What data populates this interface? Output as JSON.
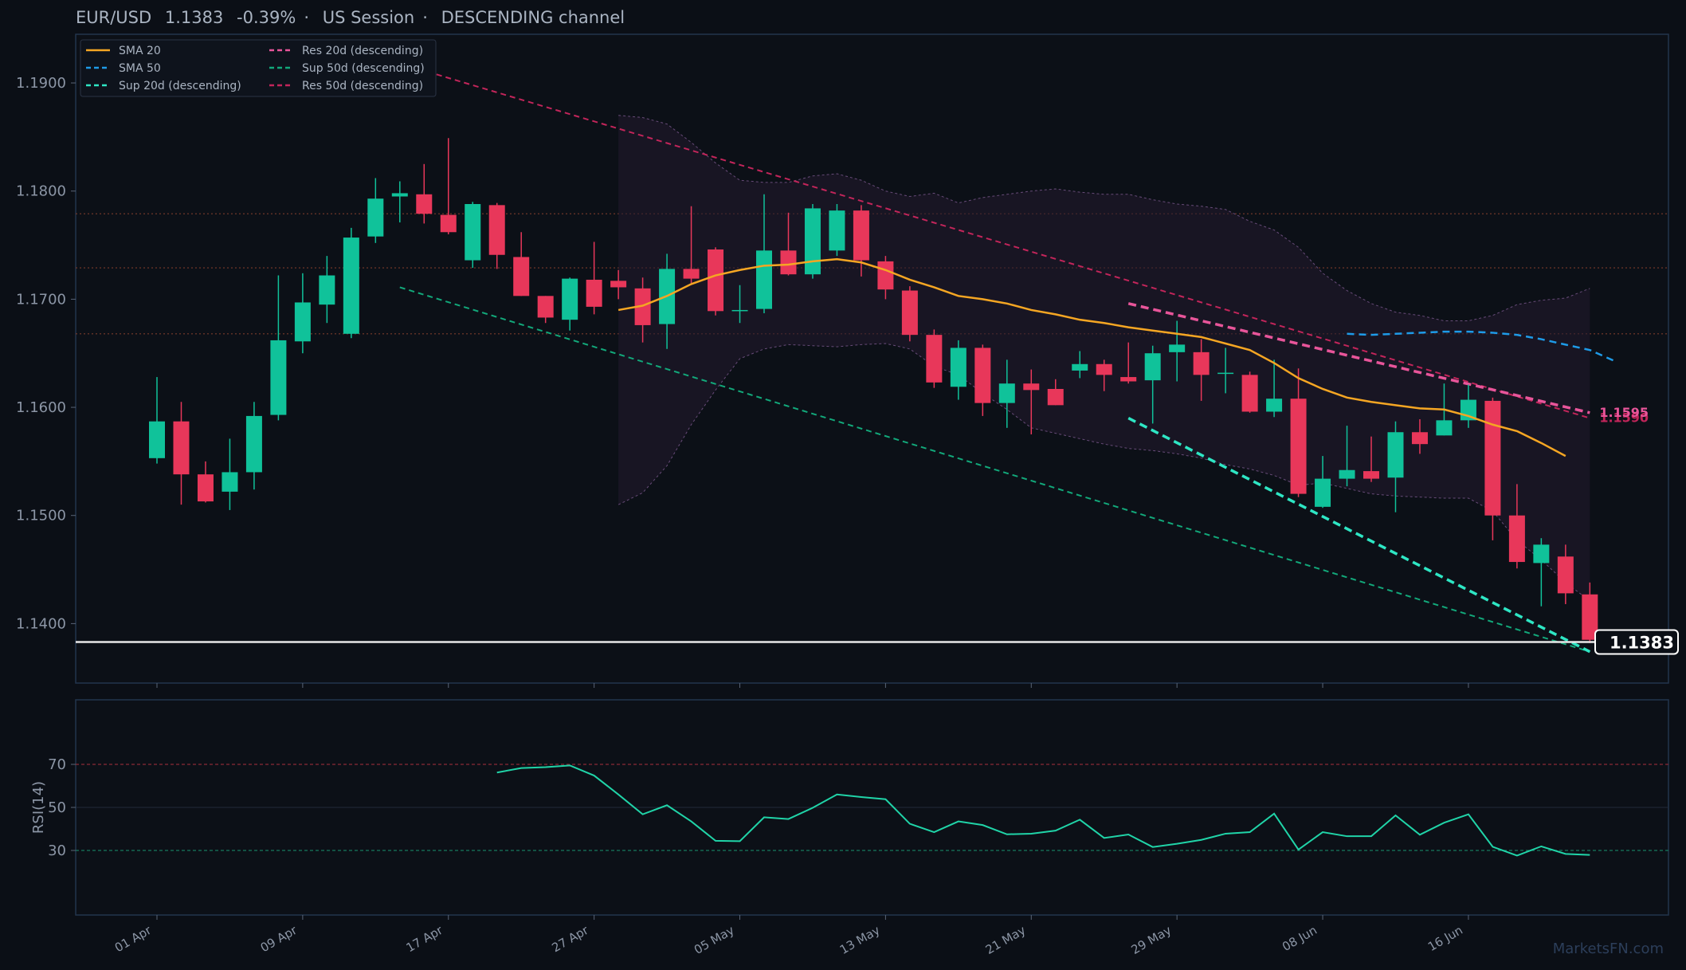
{
  "header": {
    "pair": "EUR/USD",
    "price": "1.1383",
    "change": "-0.39%",
    "session": "US Session",
    "channel": "DESCENDING channel",
    "sep": "·"
  },
  "watermark": "MarketsFN.com",
  "colors": {
    "background": "#0b0f16",
    "panel_border": "#23354d",
    "bull": "#10c29a",
    "bear": "#e8375a",
    "sma20": "#f5a623",
    "sma50": "#1e9be8",
    "sup20": "#2ee6c4",
    "sup50": "#12a87a",
    "res20": "#e8559a",
    "res50": "#c2255a",
    "rsi": "#20d4a8",
    "price_line": "#e8e8e8",
    "band": "#7d5a90"
  },
  "chart_data": [
    {
      "type": "candlestick",
      "title": "",
      "ylim": [
        1.1345,
        1.1945
      ],
      "y_ticks": [
        "1.1900",
        "1.1800",
        "1.1700",
        "1.1600",
        "1.1500",
        "1.1400"
      ],
      "x_ticks": [
        "01 Apr",
        "09 Apr",
        "17 Apr",
        "27 Apr",
        "05 May",
        "13 May",
        "21 May",
        "29 May",
        "08 Jun",
        "16 Jun"
      ],
      "x_tick_index": [
        0,
        6,
        12,
        18,
        24,
        30,
        36,
        42,
        48,
        54
      ],
      "last_price_label": "1.1383",
      "legend_placement": "top-left",
      "legend": [
        {
          "name": "SMA 20",
          "style": "solid",
          "color": "#f5a623"
        },
        {
          "name": "SMA 50",
          "style": "dashed",
          "color": "#1e9be8"
        },
        {
          "name": "Sup 20d (descending)",
          "style": "dashed",
          "color": "#2ee6c4"
        },
        {
          "name": "Res 20d (descending)",
          "style": "dashed",
          "color": "#e8559a"
        },
        {
          "name": "Sup 50d (descending)",
          "style": "dashed",
          "color": "#12a87a"
        },
        {
          "name": "Res 50d (descending)",
          "style": "dashed",
          "color": "#c2255a"
        }
      ],
      "candles": [
        {
          "o": 1.1553,
          "h": 1.1628,
          "l": 1.1548,
          "c": 1.1587
        },
        {
          "o": 1.1587,
          "h": 1.1605,
          "l": 1.151,
          "c": 1.1538
        },
        {
          "o": 1.1538,
          "h": 1.155,
          "l": 1.1512,
          "c": 1.1513
        },
        {
          "o": 1.1522,
          "h": 1.1571,
          "l": 1.1505,
          "c": 1.154
        },
        {
          "o": 1.154,
          "h": 1.1605,
          "l": 1.1524,
          "c": 1.1592
        },
        {
          "o": 1.1593,
          "h": 1.1722,
          "l": 1.1588,
          "c": 1.1662
        },
        {
          "o": 1.1661,
          "h": 1.1724,
          "l": 1.165,
          "c": 1.1697
        },
        {
          "o": 1.1695,
          "h": 1.174,
          "l": 1.1678,
          "c": 1.1722
        },
        {
          "o": 1.1668,
          "h": 1.1766,
          "l": 1.1664,
          "c": 1.1757
        },
        {
          "o": 1.1758,
          "h": 1.1812,
          "l": 1.1752,
          "c": 1.1793
        },
        {
          "o": 1.1795,
          "h": 1.1809,
          "l": 1.1771,
          "c": 1.1798
        },
        {
          "o": 1.1797,
          "h": 1.1825,
          "l": 1.177,
          "c": 1.1779
        },
        {
          "o": 1.1778,
          "h": 1.1849,
          "l": 1.176,
          "c": 1.1762
        },
        {
          "o": 1.1736,
          "h": 1.179,
          "l": 1.1729,
          "c": 1.1788
        },
        {
          "o": 1.1787,
          "h": 1.1789,
          "l": 1.1728,
          "c": 1.1741
        },
        {
          "o": 1.1739,
          "h": 1.1762,
          "l": 1.1703,
          "c": 1.1703
        },
        {
          "o": 1.1703,
          "h": 1.1703,
          "l": 1.1678,
          "c": 1.1683
        },
        {
          "o": 1.1681,
          "h": 1.172,
          "l": 1.1671,
          "c": 1.1719
        },
        {
          "o": 1.1718,
          "h": 1.1753,
          "l": 1.1686,
          "c": 1.1693
        },
        {
          "o": 1.1717,
          "h": 1.1727,
          "l": 1.17,
          "c": 1.1711
        },
        {
          "o": 1.171,
          "h": 1.172,
          "l": 1.166,
          "c": 1.1676
        },
        {
          "o": 1.1677,
          "h": 1.1742,
          "l": 1.1654,
          "c": 1.1728
        },
        {
          "o": 1.1728,
          "h": 1.1786,
          "l": 1.1715,
          "c": 1.1719
        },
        {
          "o": 1.1746,
          "h": 1.1748,
          "l": 1.1685,
          "c": 1.1689
        },
        {
          "o": 1.1689,
          "h": 1.1713,
          "l": 1.1678,
          "c": 1.169
        },
        {
          "o": 1.1691,
          "h": 1.1797,
          "l": 1.1687,
          "c": 1.1745
        },
        {
          "o": 1.1745,
          "h": 1.178,
          "l": 1.1722,
          "c": 1.1723
        },
        {
          "o": 1.1723,
          "h": 1.1788,
          "l": 1.1719,
          "c": 1.1784
        },
        {
          "o": 1.1745,
          "h": 1.1788,
          "l": 1.174,
          "c": 1.1782
        },
        {
          "o": 1.1782,
          "h": 1.1787,
          "l": 1.1721,
          "c": 1.1736
        },
        {
          "o": 1.1735,
          "h": 1.174,
          "l": 1.17,
          "c": 1.1709
        },
        {
          "o": 1.1708,
          "h": 1.1712,
          "l": 1.1661,
          "c": 1.1667
        },
        {
          "o": 1.1667,
          "h": 1.1672,
          "l": 1.1618,
          "c": 1.1623
        },
        {
          "o": 1.1619,
          "h": 1.1662,
          "l": 1.1607,
          "c": 1.1655
        },
        {
          "o": 1.1655,
          "h": 1.1658,
          "l": 1.1592,
          "c": 1.1604
        },
        {
          "o": 1.1604,
          "h": 1.1644,
          "l": 1.1581,
          "c": 1.1622
        },
        {
          "o": 1.1622,
          "h": 1.1635,
          "l": 1.1575,
          "c": 1.1616
        },
        {
          "o": 1.1617,
          "h": 1.1626,
          "l": 1.1602,
          "c": 1.1602
        },
        {
          "o": 1.1634,
          "h": 1.1652,
          "l": 1.1627,
          "c": 1.164
        },
        {
          "o": 1.164,
          "h": 1.1644,
          "l": 1.1615,
          "c": 1.163
        },
        {
          "o": 1.1628,
          "h": 1.166,
          "l": 1.1622,
          "c": 1.1624
        },
        {
          "o": 1.1625,
          "h": 1.1657,
          "l": 1.1585,
          "c": 1.165
        },
        {
          "o": 1.1651,
          "h": 1.168,
          "l": 1.1624,
          "c": 1.1658
        },
        {
          "o": 1.1651,
          "h": 1.1663,
          "l": 1.1606,
          "c": 1.163
        },
        {
          "o": 1.1631,
          "h": 1.1655,
          "l": 1.1613,
          "c": 1.1632
        },
        {
          "o": 1.163,
          "h": 1.1633,
          "l": 1.1595,
          "c": 1.1596
        },
        {
          "o": 1.1596,
          "h": 1.1644,
          "l": 1.1591,
          "c": 1.1608
        },
        {
          "o": 1.1608,
          "h": 1.1636,
          "l": 1.1517,
          "c": 1.152
        },
        {
          "o": 1.1508,
          "h": 1.1555,
          "l": 1.1507,
          "c": 1.1534
        },
        {
          "o": 1.1534,
          "h": 1.1583,
          "l": 1.1527,
          "c": 1.1542
        },
        {
          "o": 1.1541,
          "h": 1.1573,
          "l": 1.1531,
          "c": 1.1534
        },
        {
          "o": 1.1535,
          "h": 1.1587,
          "l": 1.1503,
          "c": 1.1577
        },
        {
          "o": 1.1577,
          "h": 1.1589,
          "l": 1.1557,
          "c": 1.1566
        },
        {
          "o": 1.1574,
          "h": 1.1622,
          "l": 1.1574,
          "c": 1.1588
        },
        {
          "o": 1.1588,
          "h": 1.1621,
          "l": 1.1581,
          "c": 1.1607
        },
        {
          "o": 1.1606,
          "h": 1.1609,
          "l": 1.1477,
          "c": 1.15
        },
        {
          "o": 1.15,
          "h": 1.1529,
          "l": 1.1451,
          "c": 1.1457
        },
        {
          "o": 1.1456,
          "h": 1.1479,
          "l": 1.1416,
          "c": 1.1473
        },
        {
          "o": 1.1462,
          "h": 1.1473,
          "l": 1.1418,
          "c": 1.1428
        },
        {
          "o": 1.1427,
          "h": 1.1438,
          "l": 1.1382,
          "c": 1.1385
        }
      ],
      "sma20": {
        "start_index": 19,
        "values": [
          1.169,
          1.1694,
          1.1703,
          1.1714,
          1.1722,
          1.1727,
          1.1731,
          1.1732,
          1.1735,
          1.1737,
          1.1734,
          1.1727,
          1.1718,
          1.1711,
          1.1703,
          1.17,
          1.1696,
          1.169,
          1.1686,
          1.1681,
          1.1678,
          1.1674,
          1.1671,
          1.1668,
          1.1665,
          1.1659,
          1.1653,
          1.1641,
          1.1627,
          1.1617,
          1.1609,
          1.1605,
          1.1602,
          1.1599,
          1.1598,
          1.1592,
          1.1584,
          1.1578,
          1.1567,
          1.1555
        ]
      },
      "sma50": {
        "start_index": 49,
        "values": [
          1.1668,
          1.1667,
          1.1668,
          1.1669,
          1.167,
          1.167,
          1.1669,
          1.1667,
          1.1663,
          1.1658,
          1.1653,
          1.1643
        ]
      },
      "band_upper": {
        "start_index": 19,
        "values": [
          1.187,
          1.1868,
          1.1862,
          1.1845,
          1.1826,
          1.181,
          1.1808,
          1.1808,
          1.1814,
          1.1816,
          1.181,
          1.18,
          1.1795,
          1.1798,
          1.1789,
          1.1794,
          1.1797,
          1.18,
          1.1802,
          1.1799,
          1.1797,
          1.1797,
          1.1792,
          1.1788,
          1.1786,
          1.1783,
          1.1772,
          1.1764,
          1.1748,
          1.1724,
          1.1708,
          1.1696,
          1.1688,
          1.1685,
          1.168,
          1.168,
          1.1685,
          1.1695,
          1.1699,
          1.1701,
          1.171
        ]
      },
      "band_lower": {
        "start_index": 19,
        "values": [
          1.151,
          1.1521,
          1.1546,
          1.1584,
          1.1616,
          1.1645,
          1.1654,
          1.1658,
          1.1657,
          1.1656,
          1.1658,
          1.1659,
          1.1654,
          1.1638,
          1.163,
          1.1613,
          1.1598,
          1.1581,
          1.1576,
          1.1571,
          1.1566,
          1.1562,
          1.156,
          1.1557,
          1.1553,
          1.1547,
          1.1543,
          1.1537,
          1.1528,
          1.153,
          1.1525,
          1.152,
          1.1518,
          1.1517,
          1.1516,
          1.1516,
          1.1504,
          1.1477,
          1.1459,
          1.1438,
          1.1421
        ]
      },
      "trend_lines": [
        {
          "name": "Res 50d (descending)",
          "from": [
            10,
            1.1918
          ],
          "to": [
            59,
            1.159
          ],
          "end_label": "1.1590"
        },
        {
          "name": "Sup 50d (descending)",
          "from": [
            10,
            1.1711
          ],
          "to": [
            59,
            1.1374
          ],
          "end_label": ""
        },
        {
          "name": "Res 20d (descending)",
          "from": [
            40,
            1.1696
          ],
          "to": [
            59,
            1.1595
          ],
          "end_label": "1.1595"
        },
        {
          "name": "Sup 20d (descending)",
          "from": [
            40,
            1.159
          ],
          "to": [
            59,
            1.1374
          ],
          "end_label": ""
        }
      ],
      "resistance_levels": [
        1.1779,
        1.1729,
        1.1668
      ],
      "last_price": 1.1383
    },
    {
      "type": "line",
      "title": "",
      "ylabel": "RSI(14)",
      "ylim": [
        0,
        100
      ],
      "y_ticks": [
        "70",
        "50",
        "30"
      ],
      "overbought": 70,
      "oversold": 30,
      "rsi": {
        "start_index": 14,
        "values": [
          66.2,
          68.3,
          68.7,
          69.5,
          64.8,
          56.0,
          46.8,
          51.0,
          43.5,
          34.5,
          34.3,
          45.4,
          44.6,
          49.8,
          56.0,
          54.8,
          53.8,
          42.4,
          38.5,
          43.5,
          41.8,
          37.5,
          37.8,
          39.2,
          44.3,
          35.8,
          37.4,
          31.6,
          33.1,
          34.9,
          37.8,
          38.5,
          47.1,
          30.4,
          38.5,
          36.6,
          36.6,
          46.3,
          37.3,
          42.9,
          46.8,
          31.7,
          27.6,
          31.9,
          28.4,
          27.9
        ]
      }
    }
  ]
}
